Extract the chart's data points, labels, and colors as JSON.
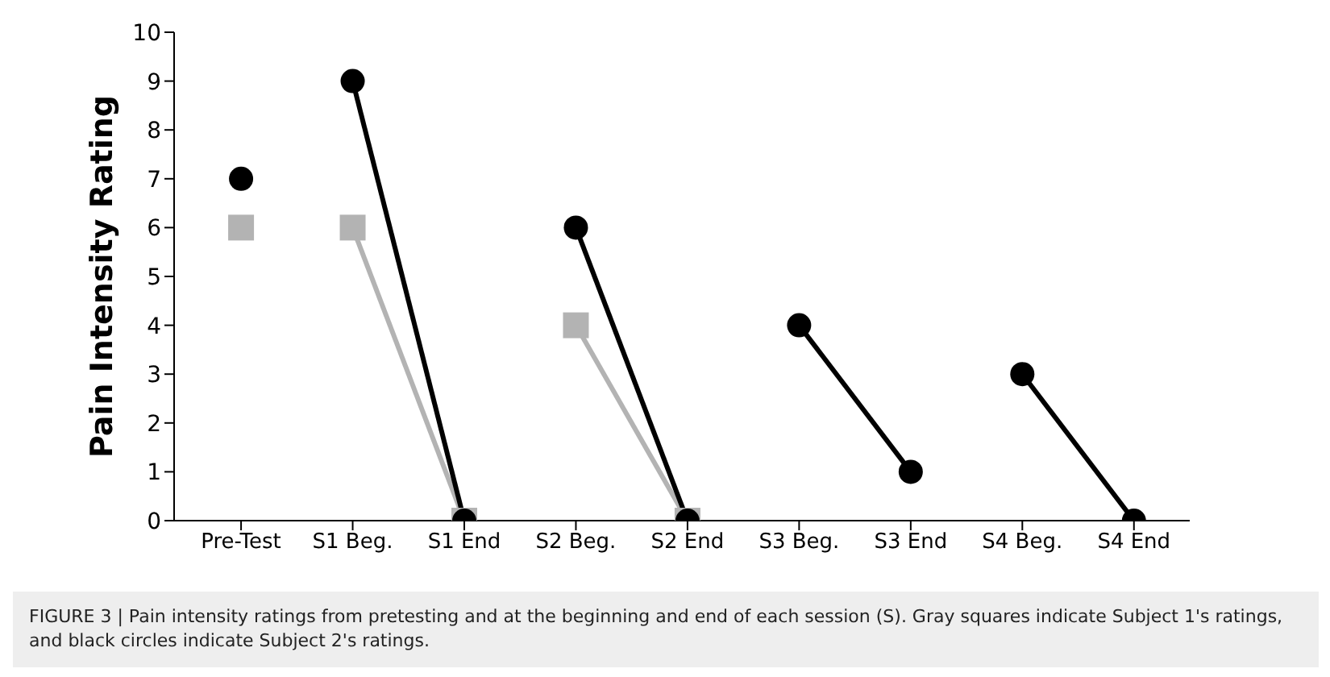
{
  "chart_data": {
    "type": "line",
    "ylabel": "Pain Intensity Rating",
    "categories": [
      "Pre-Test",
      "S1 Beg.",
      "S1 End",
      "S2 Beg.",
      "S2 End",
      "S3 Beg.",
      "S3 End",
      "S4 Beg.",
      "S4 End"
    ],
    "ylim": [
      0,
      10
    ],
    "yticks": [
      0,
      1,
      2,
      3,
      4,
      5,
      6,
      7,
      8,
      9,
      10
    ],
    "grid": false,
    "line_style": "solid",
    "series": [
      {
        "type": "scatter",
        "x": [
          "Pre-Test"
        ],
        "values": [
          6
        ],
        "color": "#b3b3b3",
        "marker": "square"
      },
      {
        "x": [
          "S1 Beg.",
          "S1 End"
        ],
        "values": [
          6,
          0
        ],
        "color": "#b3b3b3",
        "marker": "square"
      },
      {
        "x": [
          "S2 Beg.",
          "S2 End"
        ],
        "values": [
          4,
          0
        ],
        "color": "#b3b3b3",
        "marker": "square"
      },
      {
        "type": "scatter",
        "x": [
          "Pre-Test"
        ],
        "values": [
          7
        ],
        "color": "#000000",
        "marker": "circle"
      },
      {
        "x": [
          "S1 Beg.",
          "S1 End"
        ],
        "values": [
          9,
          0
        ],
        "color": "#000000",
        "marker": "circle"
      },
      {
        "x": [
          "S2 Beg.",
          "S2 End"
        ],
        "values": [
          6,
          0
        ],
        "color": "#000000",
        "marker": "circle"
      },
      {
        "x": [
          "S3 Beg.",
          "S3 End"
        ],
        "values": [
          4,
          1
        ],
        "color": "#000000",
        "marker": "circle"
      },
      {
        "x": [
          "S4 Beg.",
          "S4 End"
        ],
        "values": [
          3,
          0
        ],
        "color": "#000000",
        "marker": "circle"
      }
    ],
    "annotations": [
      "FIGURE 3 | Pain intensity ratings from pretesting and at the beginning and end of each session (S). Gray squares indicate Subject 1's ratings, and black circles indicate Subject 2's ratings."
    ]
  }
}
